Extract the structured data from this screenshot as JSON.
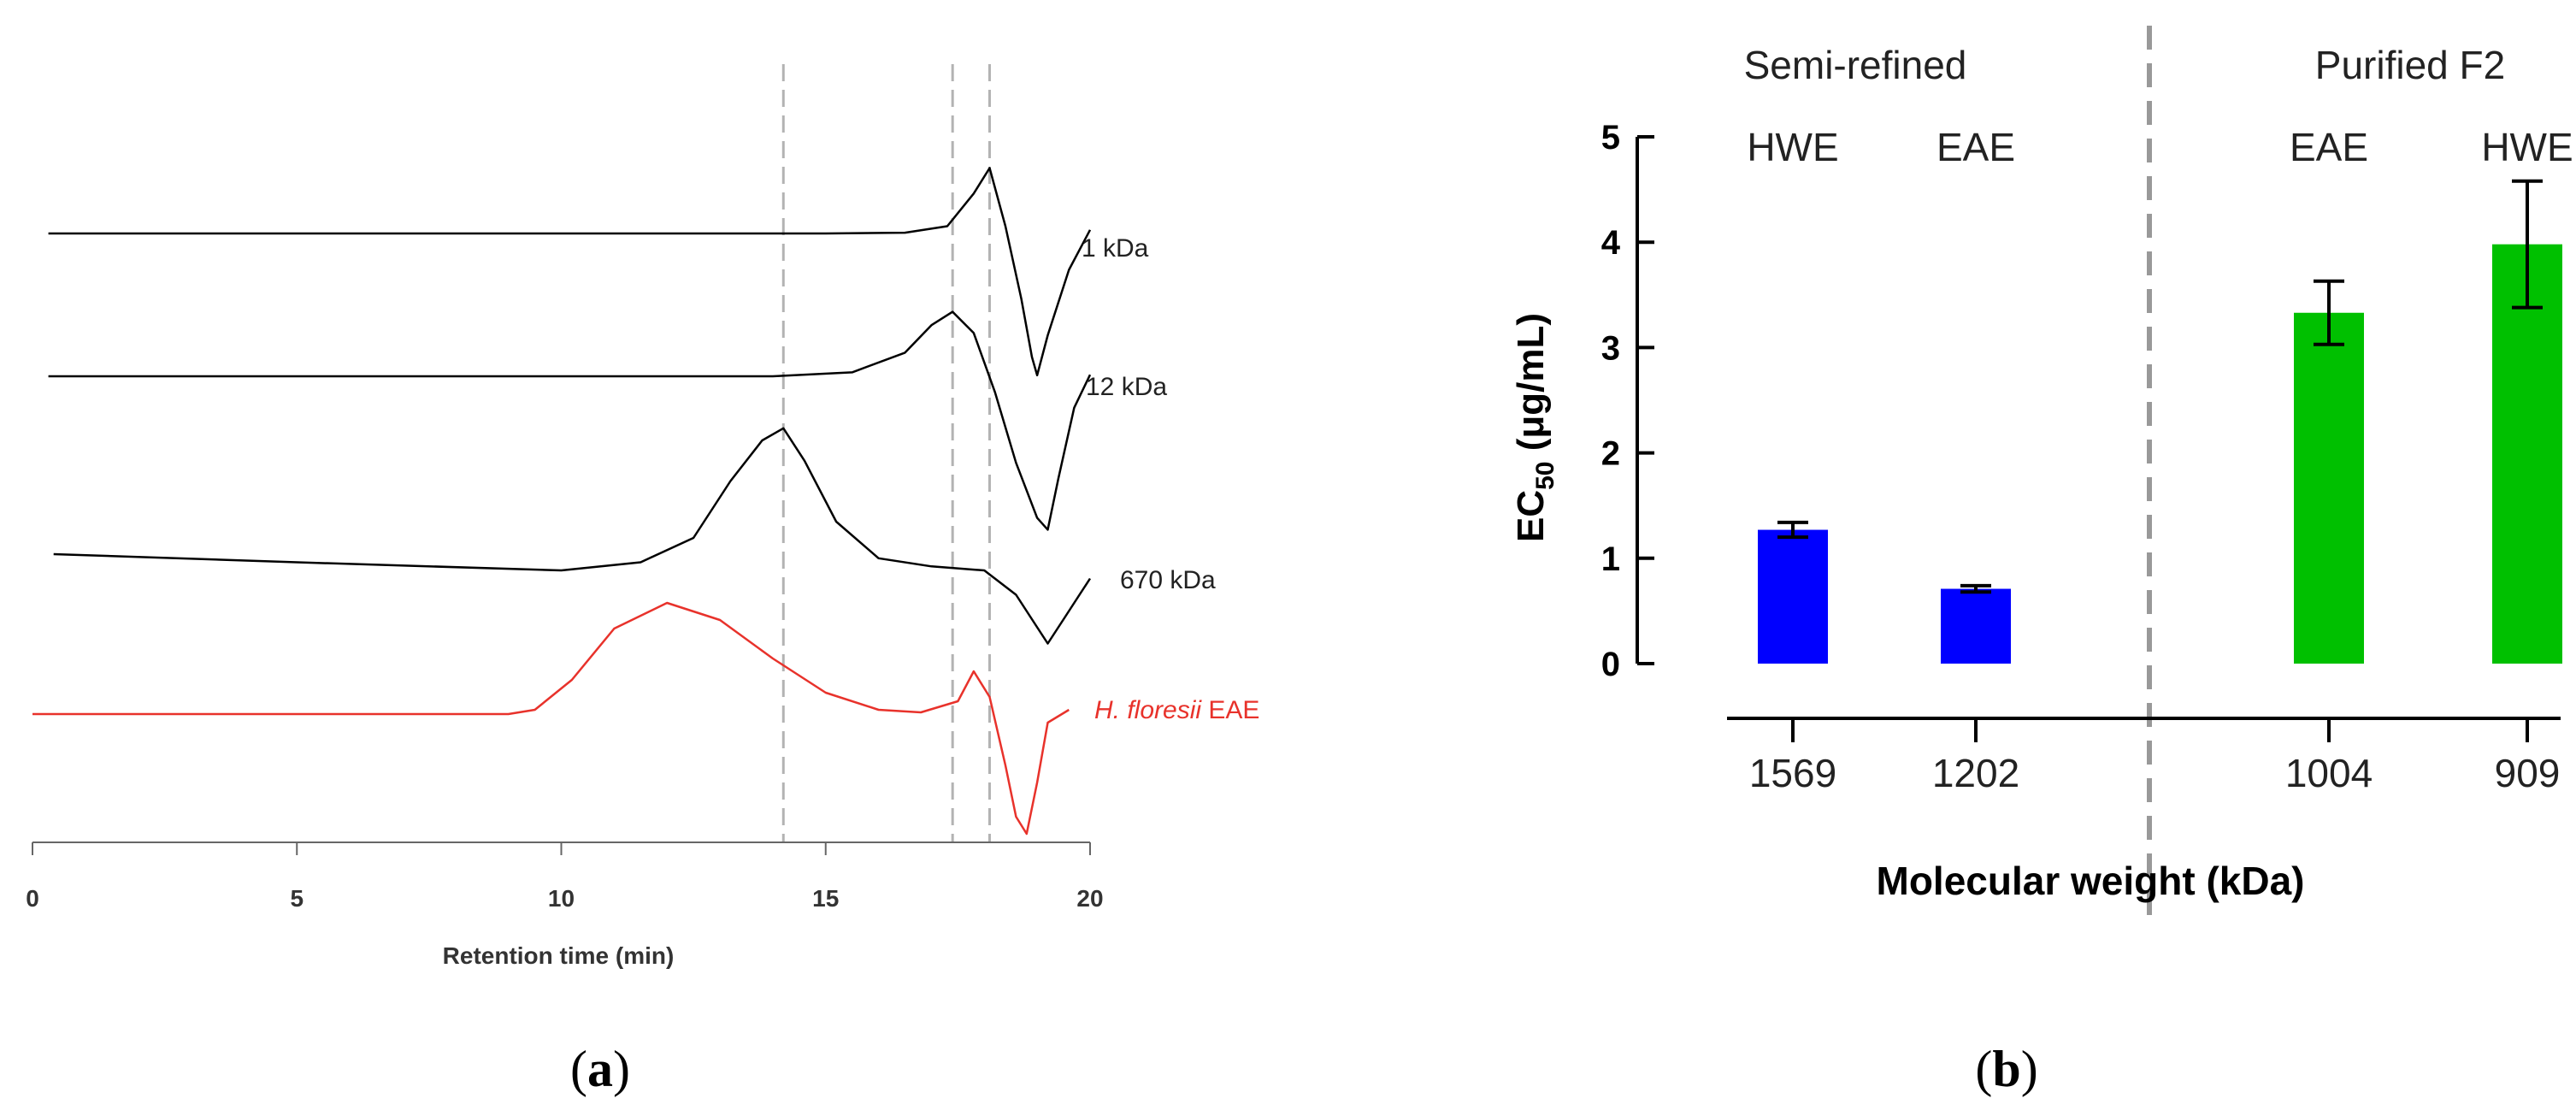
{
  "chart_data": [
    {
      "type": "line",
      "panel_label": {
        "open": "(",
        "letter": "a",
        "close": ")"
      },
      "xlabel": "Retention time (min)",
      "xlim": [
        0,
        20
      ],
      "x_ticks": [
        "0",
        "5",
        "10",
        "15",
        "20"
      ],
      "reference_lines_x": [
        14.2,
        17.4,
        18.1
      ],
      "series": [
        {
          "name": "1 kDa",
          "label": "1  kDa",
          "color": "#000000",
          "x": [
            0.3,
            5,
            10,
            15,
            16.5,
            17.3,
            17.8,
            18.1,
            18.4,
            18.7,
            18.9,
            19.0,
            19.2,
            19.6,
            20.0
          ],
          "signal": [
            0.0,
            0.0,
            0.0,
            0.0,
            0.01,
            0.1,
            0.55,
            0.9,
            0.1,
            -0.9,
            -1.7,
            -1.95,
            -1.4,
            -0.5,
            0.05
          ]
        },
        {
          "name": "12 kDa",
          "label": "12 kDa",
          "color": "#000000",
          "x": [
            0.3,
            5,
            10,
            14,
            15.5,
            16.5,
            17.0,
            17.4,
            17.8,
            18.2,
            18.6,
            19.0,
            19.2,
            19.4,
            19.7,
            20.0
          ],
          "signal": [
            0.0,
            0.0,
            0.0,
            0.0,
            0.05,
            0.3,
            0.65,
            0.82,
            0.55,
            -0.2,
            -1.1,
            -1.8,
            -1.95,
            -1.3,
            -0.4,
            0.02
          ]
        },
        {
          "name": "670 kDa",
          "label": "670 kDa",
          "color": "#000000",
          "x": [
            0.4,
            5,
            10,
            11.5,
            12.5,
            13.2,
            13.8,
            14.2,
            14.6,
            15.2,
            16.0,
            17.0,
            18.0,
            18.6,
            19.0,
            19.2,
            19.5,
            19.8,
            20.0
          ],
          "signal": [
            0.0,
            -0.1,
            -0.2,
            -0.1,
            0.2,
            0.9,
            1.4,
            1.55,
            1.15,
            0.4,
            -0.05,
            -0.15,
            -0.2,
            -0.5,
            -0.9,
            -1.1,
            -0.8,
            -0.5,
            -0.3
          ]
        },
        {
          "name": "H. floresii EAE",
          "label_italic": "H. floresii",
          "label_rest": " EAE",
          "color": "#e8322b",
          "x": [
            0,
            5,
            9,
            9.5,
            10.2,
            11,
            12,
            13,
            14,
            15,
            16,
            16.8,
            17.5,
            17.8,
            18.1,
            18.4,
            18.6,
            18.8,
            19.0,
            19.2,
            19.6
          ],
          "signal": [
            0.0,
            0.0,
            0.0,
            0.05,
            0.4,
            1.0,
            1.3,
            1.1,
            0.65,
            0.25,
            0.05,
            0.02,
            0.15,
            0.5,
            0.2,
            -0.6,
            -1.2,
            -1.4,
            -0.8,
            -0.1,
            0.05
          ]
        }
      ]
    },
    {
      "type": "bar",
      "panel_label": {
        "open": "(",
        "letter": "b",
        "close": ")"
      },
      "xlabel": "Molecular weight (kDa)",
      "ylabel_main": "EC",
      "ylabel_sub": "50",
      "ylabel_unit": " (μg/mL)",
      "ylim": [
        0,
        5
      ],
      "y_ticks": [
        "0",
        "1",
        "2",
        "3",
        "4",
        "5"
      ],
      "categories": [
        "1569",
        "1202",
        "1004",
        "909"
      ],
      "values": [
        1.27,
        0.71,
        3.33,
        3.98
      ],
      "errors": [
        0.07,
        0.03,
        0.3,
        0.6
      ],
      "bar_labels": [
        "HWE",
        "EAE",
        "EAE",
        "HWE"
      ],
      "bar_colors": [
        "#0000ff",
        "#0000ff",
        "#00c000",
        "#00c000"
      ],
      "groups": [
        {
          "name": "Semi-refined"
        },
        {
          "name": "Purified F2"
        }
      ]
    }
  ]
}
